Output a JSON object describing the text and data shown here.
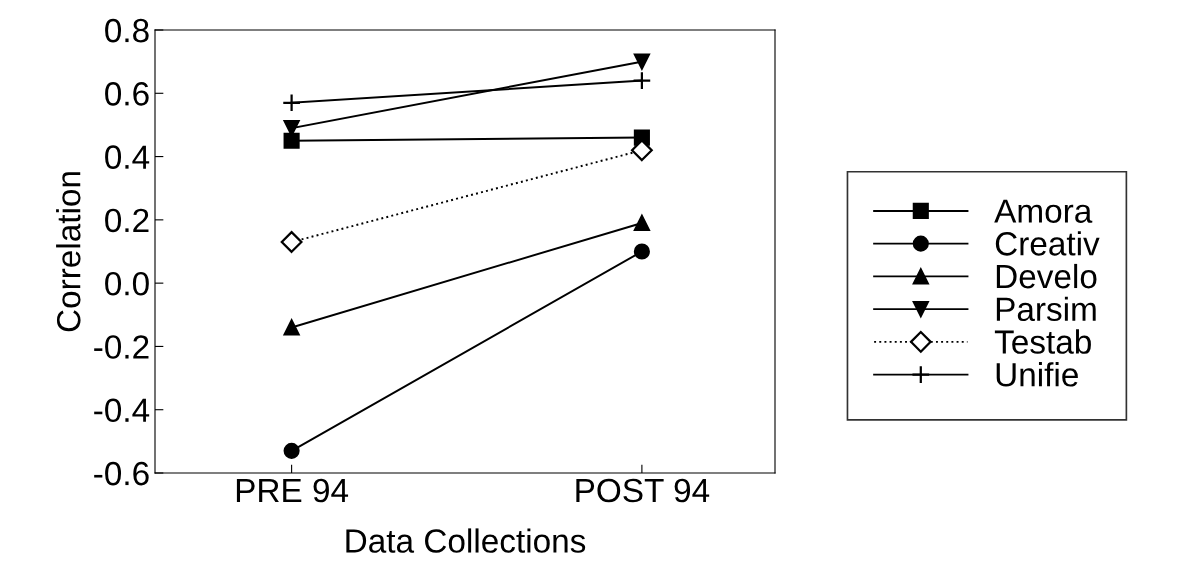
{
  "chart_data": {
    "type": "line",
    "xlabel": "Data Collections",
    "ylabel": "Correlation",
    "categories": [
      "PRE 94",
      "POST 94"
    ],
    "series": [
      {
        "name": "Amora",
        "color": "#000000",
        "values": [
          0.45,
          0.46
        ],
        "marker": "square",
        "line_style": "solid"
      },
      {
        "name": "Creativ",
        "color": "#000000",
        "values": [
          -0.53,
          0.1
        ],
        "marker": "circle",
        "line_style": "solid"
      },
      {
        "name": "Develo",
        "color": "#000000",
        "values": [
          -0.14,
          0.19
        ],
        "marker": "triangle",
        "line_style": "solid"
      },
      {
        "name": "Parsim",
        "color": "#000000",
        "values": [
          0.49,
          0.7
        ],
        "marker": "triangle_down",
        "line_style": "solid"
      },
      {
        "name": "Testab",
        "color": "#000000",
        "values": [
          0.13,
          0.42
        ],
        "marker": "diamond",
        "line_style": "dotted"
      },
      {
        "name": "Unifie",
        "color": "#000000",
        "values": [
          0.57,
          0.64
        ],
        "marker": "plus",
        "line_style": "solid"
      }
    ],
    "ylim": [
      -0.6,
      0.8
    ],
    "yticks": [
      {
        "value": -0.6,
        "label": "-0.6"
      },
      {
        "value": -0.4,
        "label": "-0.4"
      },
      {
        "value": -0.2,
        "label": "-0.2"
      },
      {
        "value": 0,
        "label": "0.0"
      },
      {
        "value": 0.2,
        "label": "0.2"
      },
      {
        "value": 0.4,
        "label": "0.4"
      },
      {
        "value": 0.6,
        "label": "0.6"
      },
      {
        "value": 0.8,
        "label": "0.8"
      }
    ],
    "grid": false,
    "legend": "right"
  }
}
